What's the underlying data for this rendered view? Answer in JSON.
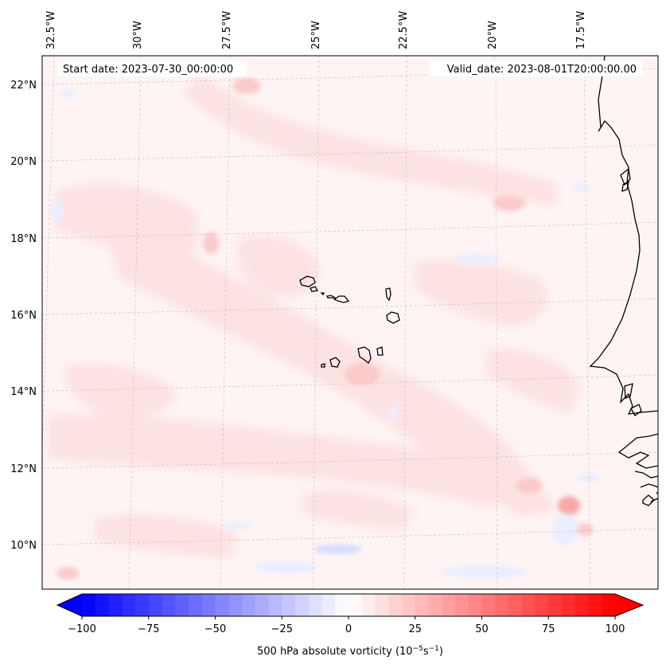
{
  "map": {
    "start_label": "Start date: 2023-07-30_00:00:00",
    "valid_label": "Valid_date: 2023-08-01T20:00:00.00",
    "lon_labels": [
      "32.5°W",
      "30°W",
      "27.5°W",
      "25°W",
      "22.5°W",
      "20°W",
      "17.5°W"
    ],
    "lat_labels": [
      "22°N",
      "20°N",
      "18°N",
      "16°N",
      "14°N",
      "12°N",
      "10°N"
    ],
    "field": "500 hPa absolute vorticity",
    "islands": "Cape Verde"
  },
  "colorbar": {
    "label": "500 hPa absolute vorticity (10",
    "label_exp1": "−5",
    "label_mid": "s",
    "label_exp2": "−1",
    "label_end": ")",
    "tick_labels": [
      "−100",
      "−75",
      "−50",
      "−25",
      "0",
      "25",
      "50",
      "75",
      "100"
    ],
    "min": -100,
    "max": 100,
    "levels": 41,
    "neg_color": "#0000ff",
    "pos_color": "#ff0000",
    "mid_color": "#ffffff"
  },
  "colors": {
    "background": "#ffffff",
    "coast": "#000000",
    "grid": "#b0b0b0",
    "field_base": "#fef4f4",
    "field_pink": "#fde2e2",
    "field_pink_mid": "#fbcaca",
    "field_pink_strong": "#f8a8a8",
    "field_blue": "#eaeeff",
    "field_blue_mid": "#d6ddff"
  }
}
